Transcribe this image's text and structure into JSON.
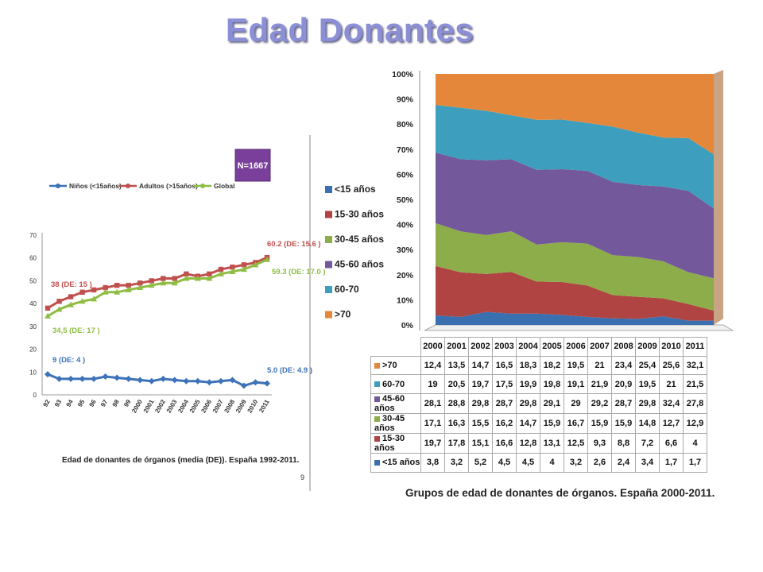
{
  "slide": {
    "title": "Edad Donantes",
    "page_number": "9"
  },
  "colors": {
    "lt15": "#3a6fb0",
    "c15_30": "#b04442",
    "c30_45": "#8dad4a",
    "c45_60": "#73589b",
    "c60_70": "#3d9fbd",
    "gt70": "#e4873a",
    "ninos": "#3d72b8",
    "adultos": "#c0504d",
    "global": "#8fbd43"
  },
  "chart_data": [
    {
      "type": "line",
      "title": "Edad de donantes de órganos (media (DE)). España 1992-2011.",
      "categories": [
        "92",
        "93",
        "94",
        "95",
        "96",
        "97",
        "98",
        "99",
        "2000",
        "2001",
        "2002",
        "2003",
        "2004",
        "2005",
        "2006",
        "2007",
        "2008",
        "2009",
        "2010",
        "2011"
      ],
      "ylim": [
        0,
        70
      ],
      "yticks": [
        "0",
        "10",
        "20",
        "30",
        "40",
        "50",
        "60",
        "70"
      ],
      "legend_position": "top",
      "series": [
        {
          "name": "Niños (<15años)",
          "values": [
            9,
            7,
            7,
            7,
            7,
            8,
            7.5,
            7,
            6.5,
            6,
            7,
            6.5,
            6,
            6,
            5.5,
            6,
            6.5,
            4,
            5.5,
            5
          ]
        },
        {
          "name": "Adultos (>15años)",
          "values": [
            38,
            41,
            43,
            45,
            46,
            47,
            48,
            48,
            49,
            50,
            51,
            51,
            53,
            52,
            53,
            55,
            56,
            57,
            58,
            60.2
          ]
        },
        {
          "name": "Global",
          "values": [
            34.5,
            37.5,
            39.5,
            41,
            42,
            45,
            45,
            46,
            47,
            48,
            49,
            49,
            51,
            51,
            51,
            53,
            54,
            55,
            57,
            59.3
          ]
        }
      ],
      "annotations": {
        "n_badge": "N=1667",
        "adultos_start": "38 (DE: 15 )",
        "global_start": "34,5 (DE: 17 )",
        "ninos_start": "9 (DE: 4 )",
        "adultos_end": "60.2 (DE: 15.6 )",
        "global_end": "59.3 (DE: 17.0 )",
        "ninos_end": "5.0 (DE: 4.9 )"
      }
    },
    {
      "type": "area",
      "stacking": "percent",
      "title": "Grupos de edad de donantes de órganos. España 2000-2011.",
      "categories": [
        "2000",
        "2001",
        "2002",
        "2003",
        "2004",
        "2005",
        "2006",
        "2007",
        "2008",
        "2009",
        "2010",
        "2011"
      ],
      "ylim": [
        0,
        100
      ],
      "yticks": [
        "0%",
        "10%",
        "20%",
        "30%",
        "40%",
        "50%",
        "60%",
        "70%",
        "80%",
        "90%",
        "100%"
      ],
      "legend_position": "left",
      "series": [
        {
          "name": "<15 años",
          "values": [
            3.8,
            3.2,
            5.2,
            4.5,
            4.5,
            4,
            3.2,
            2.6,
            2.4,
            3.4,
            1.7,
            1.7
          ]
        },
        {
          "name": "15-30 años",
          "values": [
            19.7,
            17.8,
            15.1,
            16.6,
            12.8,
            13.1,
            12.5,
            9.3,
            8.8,
            7.2,
            6.6,
            4
          ]
        },
        {
          "name": "30-45 años",
          "values": [
            17.1,
            16.3,
            15.5,
            16.2,
            14.7,
            15.9,
            16.7,
            15.9,
            15.9,
            14.8,
            12.7,
            12.9
          ]
        },
        {
          "name": "45-60 años",
          "values": [
            28.1,
            28.8,
            29.8,
            28.7,
            29.8,
            29.1,
            29,
            29.2,
            28.7,
            29.8,
            32.4,
            27.8
          ]
        },
        {
          "name": "60-70",
          "values": [
            19,
            20.5,
            19.7,
            17.5,
            19.9,
            19.8,
            19.1,
            21.9,
            20.9,
            19.5,
            21,
            21.5
          ]
        },
        {
          "name": ">70",
          "values": [
            12.4,
            13.5,
            14.7,
            16.5,
            18.3,
            18.2,
            19.5,
            21,
            23.4,
            25.4,
            25.6,
            32.1
          ]
        }
      ],
      "table_rows": [
        {
          "label": ">70",
          "color_key": "gt70",
          "values": [
            "12,4",
            "13,5",
            "14,7",
            "16,5",
            "18,3",
            "18,2",
            "19,5",
            "21",
            "23,4",
            "25,4",
            "25,6",
            "32,1"
          ]
        },
        {
          "label": "60-70",
          "color_key": "c60_70",
          "values": [
            "19",
            "20,5",
            "19,7",
            "17,5",
            "19,9",
            "19,8",
            "19,1",
            "21,9",
            "20,9",
            "19,5",
            "21",
            "21,5"
          ]
        },
        {
          "label": "45-60 años",
          "color_key": "c45_60",
          "values": [
            "28,1",
            "28,8",
            "29,8",
            "28,7",
            "29,8",
            "29,1",
            "29",
            "29,2",
            "28,7",
            "29,8",
            "32,4",
            "27,8"
          ]
        },
        {
          "label": "30-45 años",
          "color_key": "c30_45",
          "values": [
            "17,1",
            "16,3",
            "15,5",
            "16,2",
            "14,7",
            "15,9",
            "16,7",
            "15,9",
            "15,9",
            "14,8",
            "12,7",
            "12,9"
          ]
        },
        {
          "label": "15-30 años",
          "color_key": "c15_30",
          "values": [
            "19,7",
            "17,8",
            "15,1",
            "16,6",
            "12,8",
            "13,1",
            "12,5",
            "9,3",
            "8,8",
            "7,2",
            "6,6",
            "4"
          ]
        },
        {
          "label": "<15 años",
          "color_key": "lt15",
          "values": [
            "3,8",
            "3,2",
            "5,2",
            "4,5",
            "4,5",
            "4",
            "3,2",
            "2,6",
            "2,4",
            "3,4",
            "1,7",
            "1,7"
          ]
        }
      ]
    }
  ]
}
